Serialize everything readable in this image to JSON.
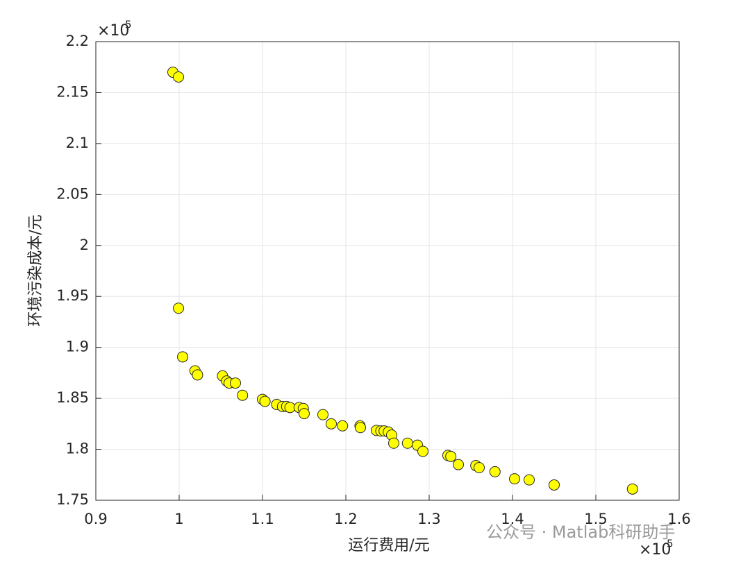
{
  "chart_data": {
    "type": "scatter",
    "x_label": "运行费用/元",
    "y_label": "环境污染成本/元",
    "x_exponent_base": "×10",
    "x_exponent": "5",
    "y_exponent_base": "×10",
    "y_exponent": "5",
    "watermark": "公众号 · Matlab科研助手",
    "color": "#ffff00",
    "edge_color": "#262626",
    "grid": true,
    "xlim": [
      0.9,
      1.6
    ],
    "ylim": [
      1.75,
      2.2
    ],
    "xticks": [
      0.9,
      1,
      1.1,
      1.2,
      1.3,
      1.4,
      1.5,
      1.6
    ],
    "yticks": [
      1.75,
      1.8,
      1.85,
      1.9,
      1.95,
      2,
      2.05,
      2.1,
      2.15,
      2.2
    ],
    "x": [
      0.9925,
      0.9992,
      0.9992,
      1.0042,
      1.019,
      1.022,
      1.052,
      1.057,
      1.06,
      1.0675,
      1.076,
      1.1,
      1.103,
      1.117,
      1.124,
      1.129,
      1.133,
      1.144,
      1.149,
      1.15,
      1.1725,
      1.1825,
      1.196,
      1.217,
      1.2175,
      1.2367,
      1.242,
      1.246,
      1.251,
      1.255,
      1.2575,
      1.274,
      1.286,
      1.2925,
      1.3225,
      1.326,
      1.335,
      1.356,
      1.36,
      1.379,
      1.4025,
      1.42,
      1.45,
      1.544
    ],
    "values": [
      2.17,
      2.1653,
      1.9384,
      1.8907,
      1.877,
      1.873,
      1.872,
      1.867,
      1.865,
      1.865,
      1.853,
      1.849,
      1.847,
      1.844,
      1.842,
      1.842,
      1.841,
      1.841,
      1.84,
      1.835,
      1.834,
      1.825,
      1.823,
      1.823,
      1.8213,
      1.8185,
      1.818,
      1.818,
      1.817,
      1.814,
      1.806,
      1.806,
      1.804,
      1.798,
      1.794,
      1.793,
      1.785,
      1.784,
      1.782,
      1.778,
      1.771,
      1.77,
      1.765,
      1.761
    ]
  }
}
